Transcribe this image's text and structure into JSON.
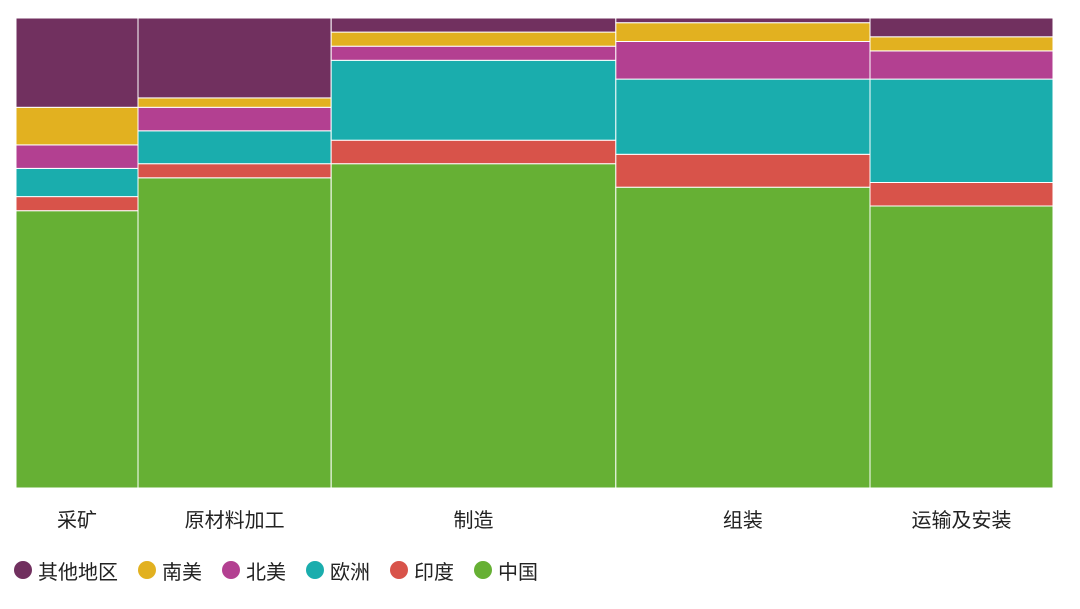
{
  "chart_data": {
    "type": "bar",
    "subtype": "marimekko",
    "title": "",
    "xlabel": "",
    "ylabel": "",
    "ylim": [
      0,
      100
    ],
    "grid": false,
    "legend_position": "bottom-left",
    "categories": [
      "采矿",
      "原材料加工",
      "制造",
      "组装",
      "运输及安装"
    ],
    "category_widths": [
      12,
      19,
      28,
      25,
      18
    ],
    "series": [
      {
        "name": "中国",
        "color": "#66b034",
        "values": [
          59,
          66,
          69,
          64,
          60
        ]
      },
      {
        "name": "印度",
        "color": "#d8534a",
        "values": [
          3,
          3,
          5,
          7,
          5
        ]
      },
      {
        "name": "欧洲",
        "color": "#1aadad",
        "values": [
          6,
          7,
          17,
          16,
          22
        ]
      },
      {
        "name": "北美",
        "color": "#b34091",
        "values": [
          5,
          5,
          3,
          8,
          6
        ]
      },
      {
        "name": "南美",
        "color": "#e2b120",
        "values": [
          8,
          2,
          3,
          4,
          3
        ]
      },
      {
        "name": "其他地区",
        "color": "#71305f",
        "values": [
          19,
          17,
          3,
          1,
          4
        ]
      }
    ]
  },
  "legend_order": [
    "其他地区",
    "南美",
    "北美",
    "欧洲",
    "印度",
    "中国"
  ]
}
